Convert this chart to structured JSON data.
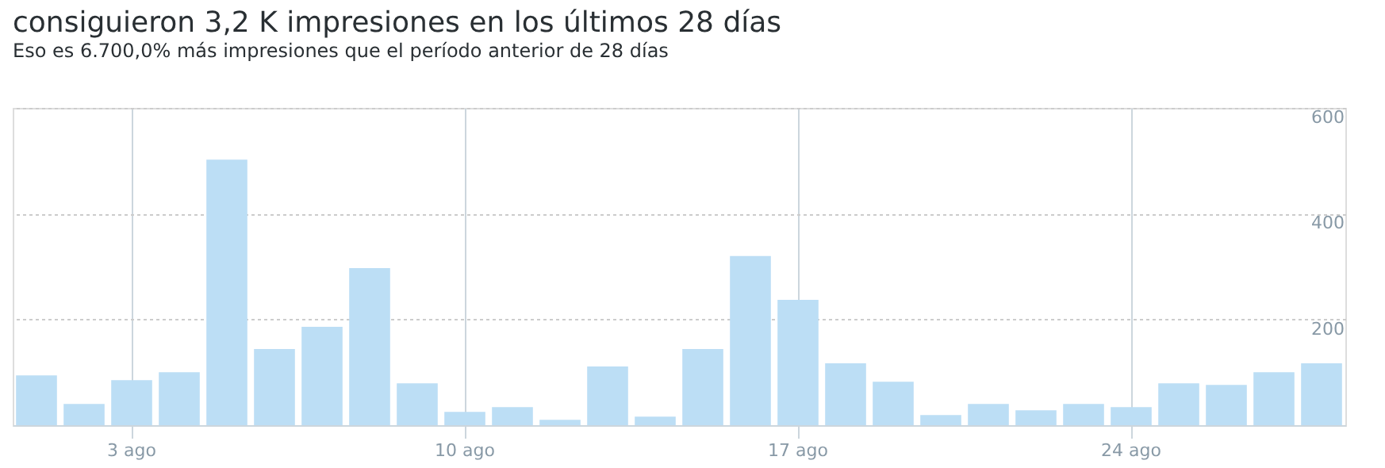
{
  "chart_data": {
    "type": "bar",
    "title": "consiguieron 3,2 K impresiones en los últimos 28 días",
    "subtitle": "Eso es 6.700,0% más impresiones que el período anterior de 28 días",
    "categories": [
      null,
      null,
      "3 ago",
      null,
      null,
      null,
      null,
      null,
      null,
      "10 ago",
      null,
      null,
      null,
      null,
      null,
      null,
      "17 ago",
      null,
      null,
      null,
      null,
      null,
      null,
      "24 ago",
      null,
      null,
      null,
      null
    ],
    "values": [
      94,
      40,
      85,
      100,
      502,
      144,
      186,
      297,
      79,
      25,
      34,
      10,
      111,
      16,
      144,
      320,
      237,
      117,
      82,
      19,
      40,
      28,
      40,
      34,
      79,
      76,
      100,
      117
    ],
    "color": "#bcdef5",
    "ylim": [
      0,
      600
    ],
    "yticks": [
      200,
      400,
      600
    ],
    "grid": true
  }
}
